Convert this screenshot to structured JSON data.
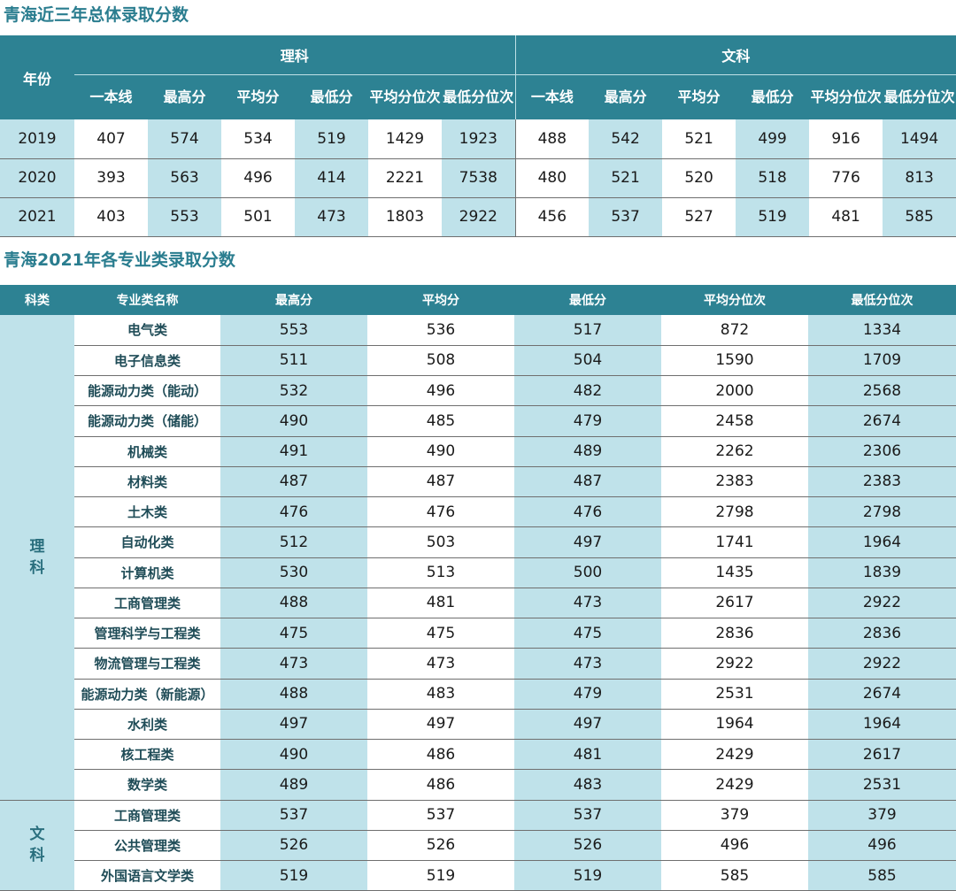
{
  "title1": "青海近三年总体录取分数",
  "title2": "青海2021年各专业类录取分数",
  "table1": {
    "year_header": "年份",
    "group1": "理科",
    "group2": "文科",
    "sub_headers": [
      "一本线",
      "最高分",
      "平均分",
      "最低分",
      "平均分位次",
      "最低分位次"
    ],
    "rows": [
      {
        "year": "2019",
        "values": [
          "407",
          "574",
          "534",
          "519",
          "1429",
          "1923",
          "488",
          "542",
          "521",
          "499",
          "916",
          "1494"
        ]
      },
      {
        "year": "2020",
        "values": [
          "393",
          "563",
          "496",
          "414",
          "2221",
          "7538",
          "480",
          "521",
          "520",
          "518",
          "776",
          "813"
        ]
      },
      {
        "year": "2021",
        "values": [
          "403",
          "553",
          "501",
          "473",
          "1803",
          "2922",
          "456",
          "537",
          "527",
          "519",
          "481",
          "585"
        ]
      }
    ]
  },
  "table2": {
    "headers": [
      "科类",
      "专业类名称",
      "最高分",
      "平均分",
      "最低分",
      "平均分位次",
      "最低分位次"
    ],
    "groups": [
      {
        "category": "理科",
        "rows": [
          {
            "name": "电气类",
            "values": [
              "553",
              "536",
              "517",
              "872",
              "1334"
            ]
          },
          {
            "name": "电子信息类",
            "values": [
              "511",
              "508",
              "504",
              "1590",
              "1709"
            ]
          },
          {
            "name": "能源动力类（能动）",
            "values": [
              "532",
              "496",
              "482",
              "2000",
              "2568"
            ]
          },
          {
            "name": "能源动力类（储能）",
            "values": [
              "490",
              "485",
              "479",
              "2458",
              "2674"
            ]
          },
          {
            "name": "机械类",
            "values": [
              "491",
              "490",
              "489",
              "2262",
              "2306"
            ]
          },
          {
            "name": "材料类",
            "values": [
              "487",
              "487",
              "487",
              "2383",
              "2383"
            ]
          },
          {
            "name": "土木类",
            "values": [
              "476",
              "476",
              "476",
              "2798",
              "2798"
            ]
          },
          {
            "name": "自动化类",
            "values": [
              "512",
              "503",
              "497",
              "1741",
              "1964"
            ]
          },
          {
            "name": "计算机类",
            "values": [
              "530",
              "513",
              "500",
              "1435",
              "1839"
            ]
          },
          {
            "name": "工商管理类",
            "values": [
              "488",
              "481",
              "473",
              "2617",
              "2922"
            ]
          },
          {
            "name": "管理科学与工程类",
            "values": [
              "475",
              "475",
              "475",
              "2836",
              "2836"
            ]
          },
          {
            "name": "物流管理与工程类",
            "values": [
              "473",
              "473",
              "473",
              "2922",
              "2922"
            ]
          },
          {
            "name": "能源动力类（新能源）",
            "values": [
              "488",
              "483",
              "479",
              "2531",
              "2674"
            ]
          },
          {
            "name": "水利类",
            "values": [
              "497",
              "497",
              "497",
              "1964",
              "1964"
            ]
          },
          {
            "name": "核工程类",
            "values": [
              "490",
              "486",
              "481",
              "2429",
              "2617"
            ]
          },
          {
            "name": "数学类",
            "values": [
              "489",
              "486",
              "483",
              "2429",
              "2531"
            ]
          }
        ]
      },
      {
        "category": "文科",
        "rows": [
          {
            "name": "工商管理类",
            "values": [
              "537",
              "537",
              "537",
              "379",
              "379"
            ]
          },
          {
            "name": "公共管理类",
            "values": [
              "526",
              "526",
              "526",
              "496",
              "496"
            ]
          },
          {
            "name": "外国语言文学类",
            "values": [
              "519",
              "519",
              "519",
              "585",
              "585"
            ]
          }
        ]
      }
    ]
  },
  "colors": {
    "header_bg": "#2d8293",
    "shade": "#bfe2ea",
    "title": "#2a7d8f"
  }
}
